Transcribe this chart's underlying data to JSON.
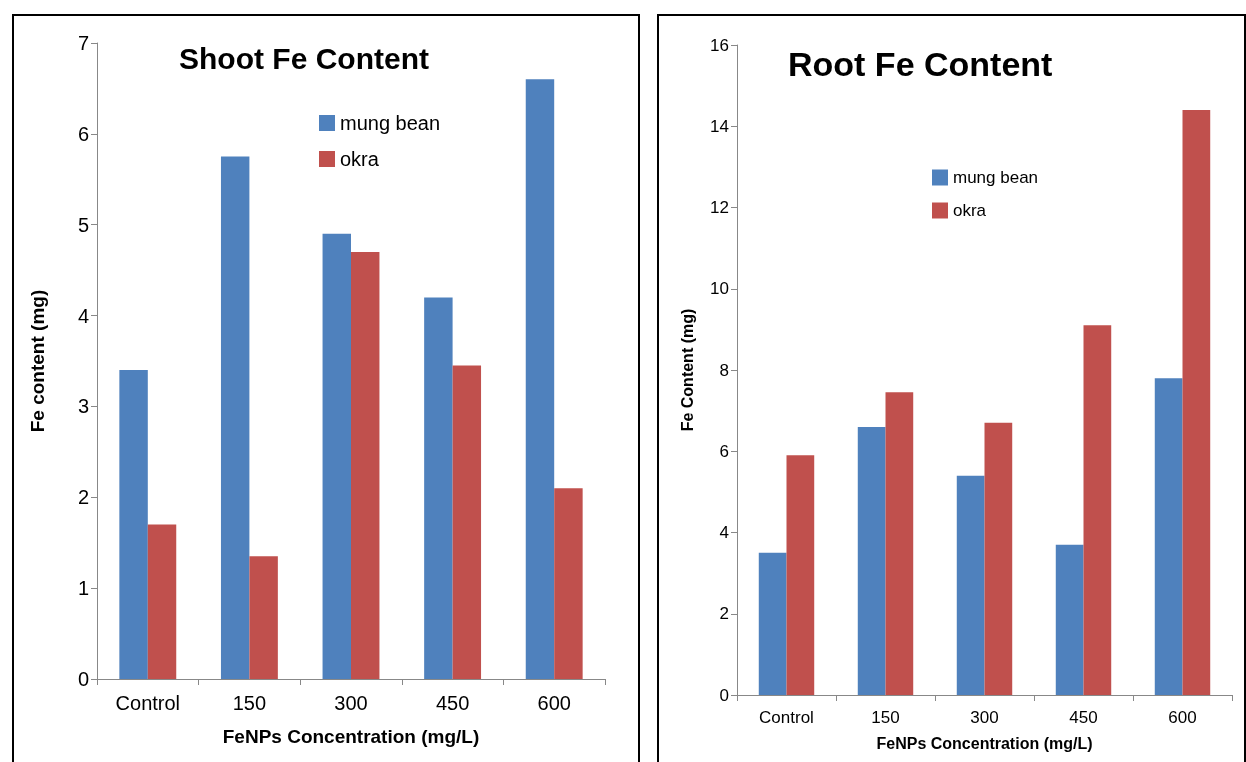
{
  "chart_data": [
    {
      "type": "bar",
      "title": "Shoot Fe Content",
      "xlabel": "FeNPs Concentration (mg/L)",
      "ylabel": "Fe content (mg)",
      "categories": [
        "Control",
        "150",
        "300",
        "450",
        "600"
      ],
      "series": [
        {
          "name": "mung bean",
          "color": "#4f81bd",
          "values": [
            3.4,
            5.75,
            4.9,
            4.2,
            6.6
          ]
        },
        {
          "name": "okra",
          "color": "#c0504d",
          "values": [
            1.7,
            1.35,
            4.7,
            3.45,
            2.1
          ]
        }
      ],
      "ylim": [
        0,
        7
      ],
      "yticks": [
        0,
        1,
        2,
        3,
        4,
        5,
        6,
        7
      ],
      "legend": "top right"
    },
    {
      "type": "bar",
      "title": "Root Fe Content",
      "xlabel": "FeNPs Concentration (mg/L)",
      "ylabel": "Fe Content (mg)",
      "categories": [
        "Control",
        "150",
        "300",
        "450",
        "600"
      ],
      "series": [
        {
          "name": "mung bean",
          "color": "#4f81bd",
          "values": [
            3.5,
            6.6,
            5.4,
            3.7,
            7.8
          ]
        },
        {
          "name": "okra",
          "color": "#c0504d",
          "values": [
            5.9,
            7.45,
            6.7,
            9.1,
            14.4
          ]
        }
      ],
      "ylim": [
        0,
        16
      ],
      "yticks": [
        0,
        2,
        4,
        6,
        8,
        10,
        12,
        14,
        16
      ],
      "legend": "top"
    }
  ]
}
